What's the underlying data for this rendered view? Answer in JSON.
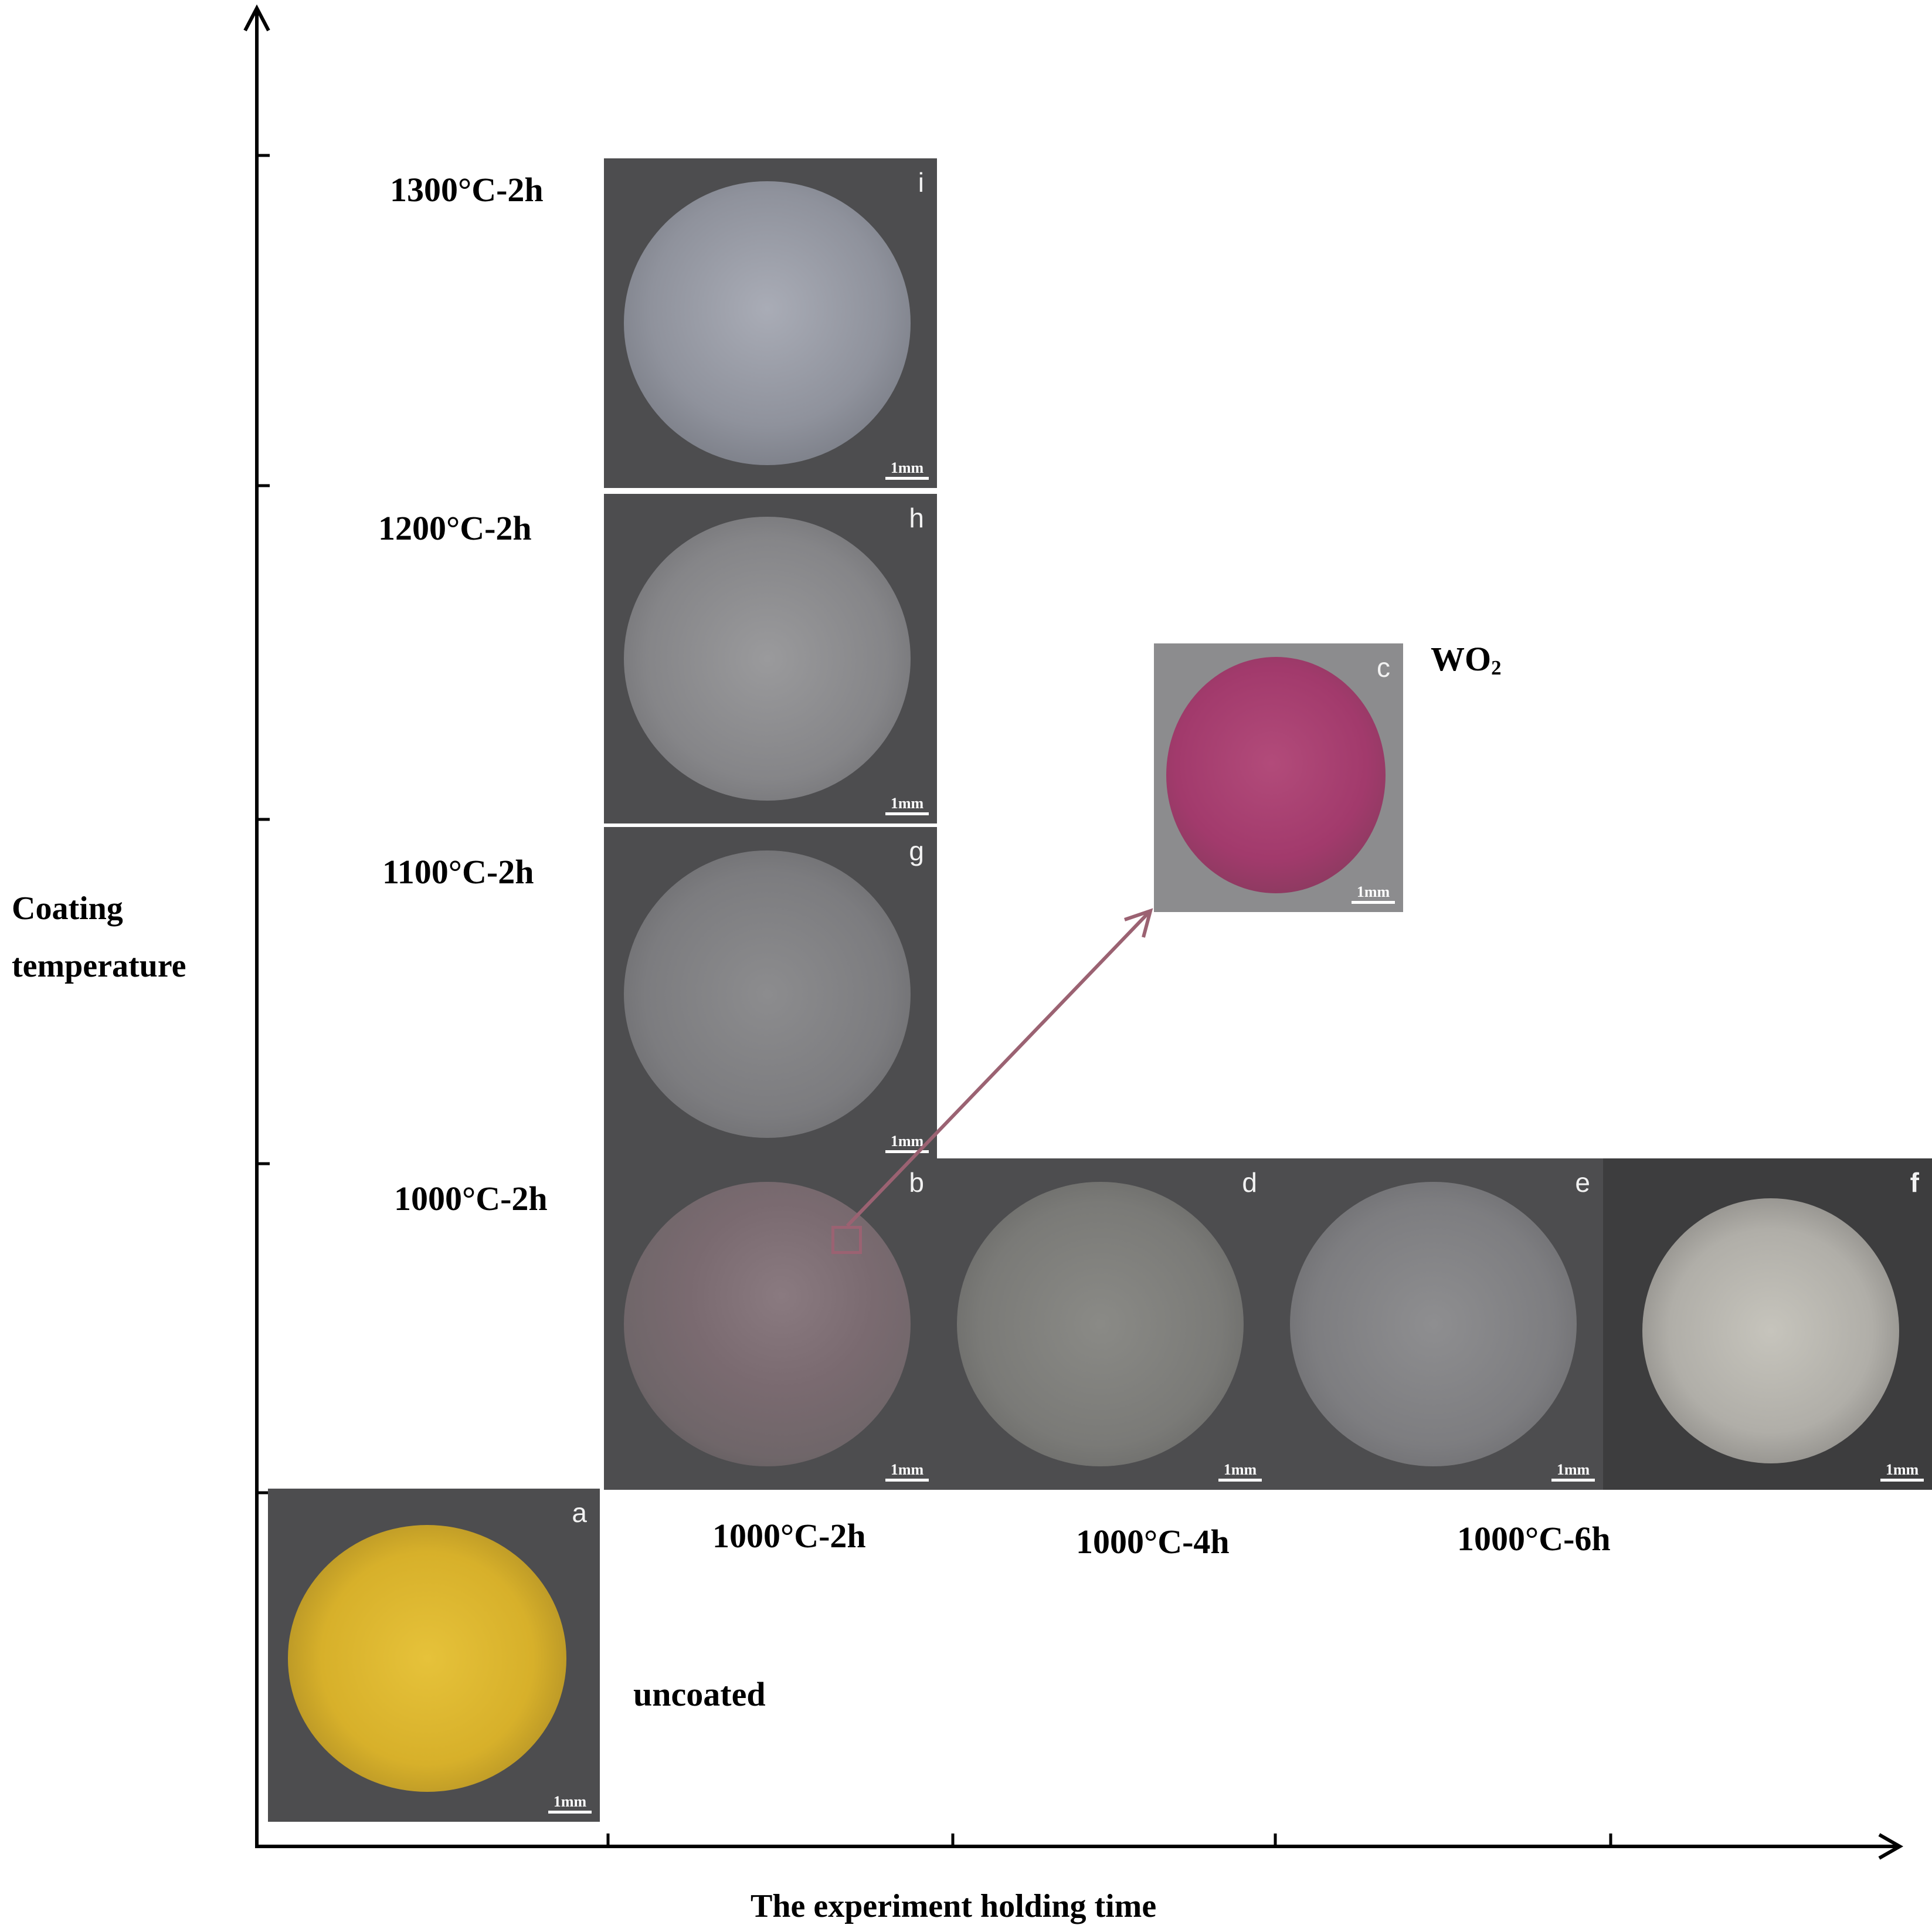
{
  "axes": {
    "y_label": "Coating temperature",
    "x_label": "The experiment holding time"
  },
  "colors": {
    "axis": "#000000",
    "arrow": "#9b6272",
    "panel_bg": "#4d4d4f",
    "gold_particles": "#d7b02a",
    "pink_particles": "#a23a6c",
    "gray_particles": "#8d8d90"
  },
  "row_labels": [
    "1300°C-2h",
    "1200°C-2h",
    "1100°C-2h",
    "1000°C-2h"
  ],
  "column_labels": [
    "1000°C-2h",
    "1000°C-4h",
    "1000°C-6h"
  ],
  "uncoated_label": "uncoated",
  "wo2_label": {
    "main": "WO",
    "sub": "2"
  },
  "panels": [
    {
      "id": "a",
      "tag": "a",
      "scale": "1mm",
      "particles": "gold"
    },
    {
      "id": "b",
      "tag": "b",
      "scale": "1mm",
      "particles": "mixed-pink"
    },
    {
      "id": "c",
      "tag": "c",
      "scale": "1mm",
      "particles": "pink"
    },
    {
      "id": "d",
      "tag": "d",
      "scale": "1mm",
      "particles": "gray"
    },
    {
      "id": "e",
      "tag": "e",
      "scale": "1mm",
      "particles": "gray"
    },
    {
      "id": "f",
      "tag": "f",
      "scale": "1mm",
      "particles": "light-gray"
    },
    {
      "id": "g",
      "tag": "g",
      "scale": "1mm",
      "particles": "gray"
    },
    {
      "id": "h",
      "tag": "h",
      "scale": "1mm",
      "particles": "gray"
    },
    {
      "id": "i",
      "tag": "i",
      "scale": "1mm",
      "particles": "blue-gray"
    }
  ]
}
